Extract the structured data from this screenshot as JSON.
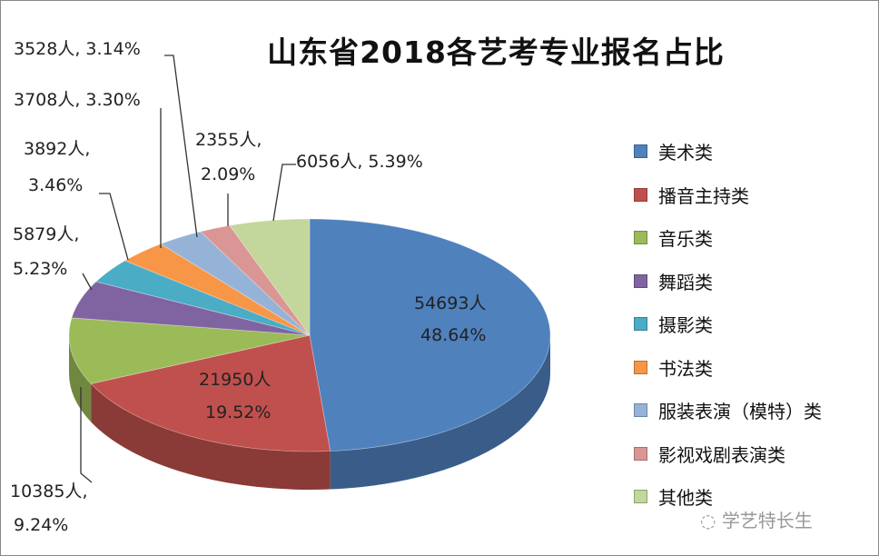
{
  "chart_data": {
    "type": "pie",
    "style": "3d",
    "title": "山东省2018各艺考专业报名占比",
    "legend_position": "right",
    "slices": [
      {
        "name": "美术类",
        "count": 54693,
        "count_label": "54693人",
        "percent": 48.64,
        "percent_label": "48.64%",
        "color": "#4F81BD"
      },
      {
        "name": "播音主持类",
        "count": 21950,
        "count_label": "21950人",
        "percent": 19.52,
        "percent_label": "19.52%",
        "color": "#C0504D"
      },
      {
        "name": "音乐类",
        "count": 10385,
        "count_label": "10385人,",
        "percent": 9.24,
        "percent_label": "9.24%",
        "color": "#9BBB59"
      },
      {
        "name": "舞蹈类",
        "count": 5879,
        "count_label": "5879人,",
        "percent": 5.23,
        "percent_label": "5.23%",
        "color": "#8064A2"
      },
      {
        "name": "摄影类",
        "count": 3892,
        "count_label": "3892人,",
        "percent": 3.46,
        "percent_label": "3.46%",
        "color": "#4BACC6"
      },
      {
        "name": "书法类",
        "count": 3708,
        "count_label": "3708人, 3.30%",
        "percent": 3.3,
        "percent_label": "",
        "color": "#F79646"
      },
      {
        "name": "服装表演（模特）类",
        "count": 3528,
        "count_label": "3528人, 3.14%",
        "percent": 3.14,
        "percent_label": "",
        "color": "#95B3D7"
      },
      {
        "name": "影视戏剧表演类",
        "count": 2355,
        "count_label": "2355人,",
        "percent": 2.09,
        "percent_label": "2.09%",
        "color": "#D99694"
      },
      {
        "name": "其他类",
        "count": 6056,
        "count_label": "6056人, 5.39%",
        "percent": 5.39,
        "percent_label": "",
        "color": "#C3D69B"
      }
    ]
  },
  "watermark": "学艺特长生"
}
